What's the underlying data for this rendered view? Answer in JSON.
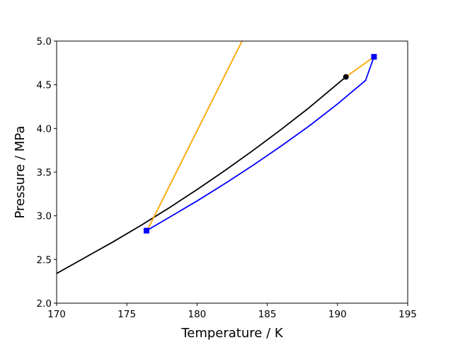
{
  "chart_data": {
    "type": "line",
    "title": "",
    "xlabel": "Temperature / K",
    "ylabel": "Pressure / MPa",
    "xlim": [
      170,
      195
    ],
    "ylim": [
      2.0,
      5.0
    ],
    "xticks": [
      170,
      175,
      180,
      185,
      190,
      195
    ],
    "xtick_labels": [
      "170",
      "175",
      "180",
      "185",
      "190",
      "195"
    ],
    "yticks": [
      2.0,
      2.5,
      3.0,
      3.5,
      4.0,
      4.5,
      5.0
    ],
    "ytick_labels": [
      "2.0",
      "2.5",
      "3.0",
      "3.5",
      "4.0",
      "4.5",
      "5.0"
    ],
    "grid": false,
    "legend": false,
    "series": [
      {
        "color": "#000000",
        "marker": "none",
        "x": [
          170.0,
          172.0,
          174.0,
          176.0,
          178.0,
          180.0,
          182.0,
          184.0,
          186.0,
          188.0,
          190.0,
          190.6
        ],
        "y": [
          2.34,
          2.52,
          2.7,
          2.89,
          3.09,
          3.3,
          3.52,
          3.75,
          3.99,
          4.24,
          4.51,
          4.59
        ]
      },
      {
        "color": "#0000ff",
        "marker": "none",
        "x": [
          176.4,
          178.0,
          180.0,
          182.0,
          184.0,
          186.0,
          188.0,
          190.0,
          192.0,
          192.6
        ],
        "y": [
          2.83,
          2.98,
          3.17,
          3.37,
          3.58,
          3.8,
          4.03,
          4.28,
          4.55,
          4.82
        ]
      },
      {
        "color": "#ffa500",
        "marker": "none",
        "x": [
          176.5,
          183.2
        ],
        "y": [
          2.85,
          5.0
        ]
      },
      {
        "color": "#ffa500",
        "marker": "none",
        "x": [
          190.6,
          192.6
        ],
        "y": [
          4.59,
          4.82
        ]
      }
    ],
    "points": [
      {
        "x": 190.6,
        "y": 4.59,
        "color": "#000000",
        "marker": "circle"
      },
      {
        "x": 176.4,
        "y": 2.83,
        "color": "#0000ff",
        "marker": "square"
      },
      {
        "x": 192.6,
        "y": 4.82,
        "color": "#0000ff",
        "marker": "square"
      }
    ]
  }
}
